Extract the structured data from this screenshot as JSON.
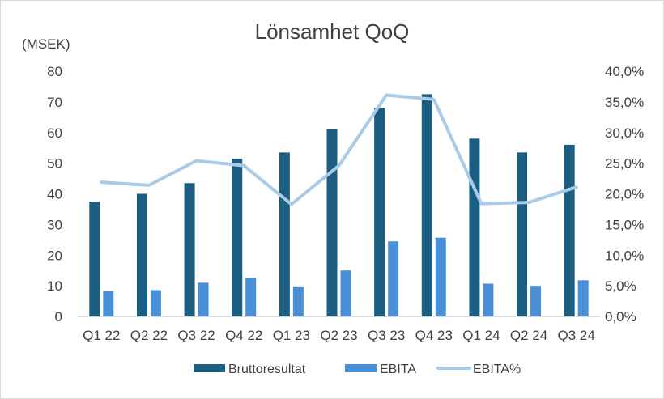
{
  "chart_data": {
    "type": "bar",
    "title": "Lönsamhet QoQ",
    "ylabel": "(MSEK)",
    "categories": [
      "Q1 22",
      "Q2 22",
      "Q3 22",
      "Q4 22",
      "Q1 23",
      "Q2 23",
      "Q3 23",
      "Q4 23",
      "Q1 24",
      "Q2 24",
      "Q3 24"
    ],
    "series": [
      {
        "name": "Bruttoresultat",
        "kind": "bar",
        "axis": "left",
        "color": "#1b5e82",
        "values": [
          37.5,
          40,
          43.5,
          51.5,
          53.5,
          61,
          68,
          72.5,
          58,
          53.5,
          56
        ]
      },
      {
        "name": "EBITA",
        "kind": "bar",
        "axis": "left",
        "color": "#4a90d9",
        "values": [
          8.2,
          8.6,
          11,
          12.6,
          9.8,
          15,
          24.5,
          25.7,
          10.7,
          10,
          11.8
        ]
      },
      {
        "name": "EBITA%",
        "kind": "line",
        "axis": "right",
        "color": "#a9cbe8",
        "values": [
          21.9,
          21.4,
          25.4,
          24.6,
          18.3,
          24.6,
          36.1,
          35.4,
          18.4,
          18.6,
          21.1
        ]
      }
    ],
    "y_left": {
      "min": 0,
      "max": 80,
      "step": 10,
      "ticks": [
        "0",
        "10",
        "20",
        "30",
        "40",
        "50",
        "60",
        "70",
        "80"
      ]
    },
    "y_right": {
      "min": 0,
      "max": 40,
      "step": 5,
      "ticks": [
        "0,0%",
        "5,0%",
        "10,0%",
        "15,0%",
        "20,0%",
        "25,0%",
        "30,0%",
        "35,0%",
        "40,0%"
      ]
    },
    "grid": false,
    "legend": "bottom"
  }
}
